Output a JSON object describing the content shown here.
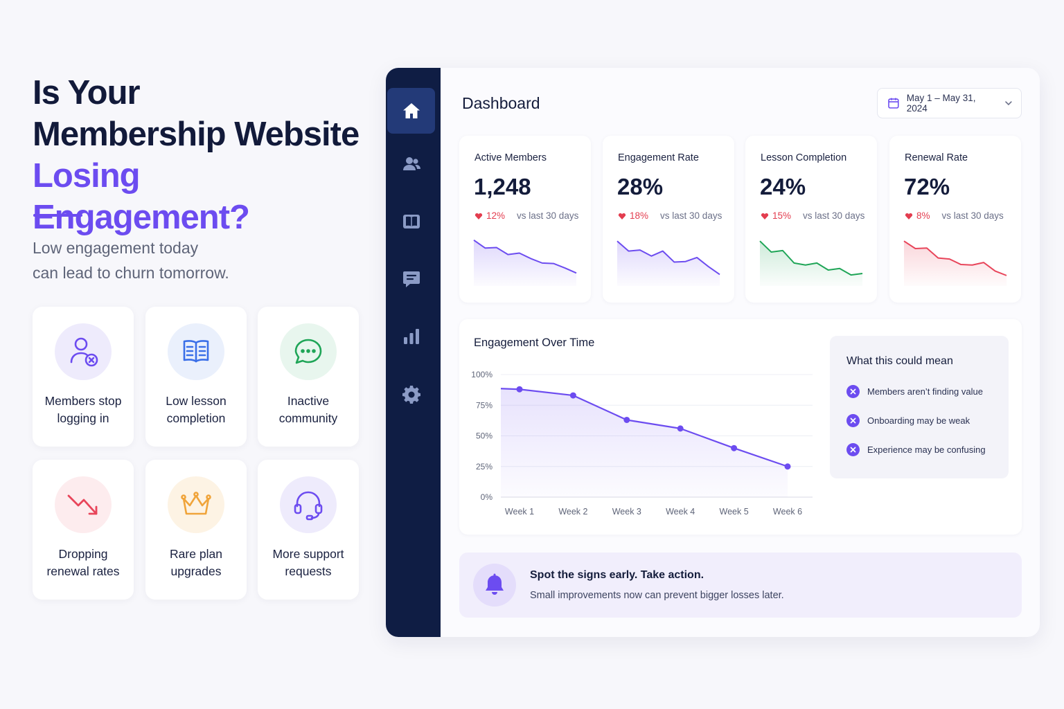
{
  "headline": {
    "line1": "Is Your",
    "line2": "Membership Website",
    "line3": "Losing Engagement?"
  },
  "subtext": {
    "line1": "Low engagement today",
    "line2": "can lead to churn tomorrow."
  },
  "sign_cards": [
    {
      "icon": "user-x-icon",
      "line1": "Members stop",
      "line2": "logging in",
      "color": "#6c4cf0",
      "bg": "#eeebfc"
    },
    {
      "icon": "open-book-icon",
      "line1": "Low lesson",
      "line2": "completion",
      "color": "#3a6fe8",
      "bg": "#eaf0fc"
    },
    {
      "icon": "chat-bubble-icon",
      "line1": "Inactive",
      "line2": "community",
      "color": "#1fa557",
      "bg": "#e8f6ee"
    },
    {
      "icon": "trend-down-icon",
      "line1": "Dropping",
      "line2": "renewal rates",
      "color": "#e8455a",
      "bg": "#fdecee"
    },
    {
      "icon": "crown-icon",
      "line1": "Rare plan",
      "line2": "upgrades",
      "color": "#f0a43a",
      "bg": "#fdf3e4"
    },
    {
      "icon": "headset-icon",
      "line1": "More support",
      "line2": "requests",
      "color": "#6c4cf0",
      "bg": "#eeebfc"
    }
  ],
  "sidebar": {
    "items": [
      {
        "icon": "home-icon",
        "active": true
      },
      {
        "icon": "users-icon",
        "active": false
      },
      {
        "icon": "courses-icon",
        "active": false
      },
      {
        "icon": "messages-icon",
        "active": false
      },
      {
        "icon": "analytics-icon",
        "active": false
      },
      {
        "icon": "settings-icon",
        "active": false
      }
    ]
  },
  "dashboard": {
    "title": "Dashboard",
    "date_range": "May 1 – May 31, 2024"
  },
  "kpis": [
    {
      "title": "Active Members",
      "value": "1,248",
      "delta": "12%",
      "compare": "vs last 30 days",
      "color": "#6c4cf0",
      "trend": [
        9.2,
        7.6,
        7.7,
        6.3,
        6.6,
        5.5,
        4.6,
        4.5,
        3.6,
        2.6
      ]
    },
    {
      "title": "Engagement Rate",
      "value": "28%",
      "delta": "18%",
      "compare": "vs last 30 days",
      "color": "#6c4cf0",
      "trend": [
        9.0,
        7.0,
        7.2,
        6.0,
        7.0,
        4.8,
        4.9,
        5.7,
        3.9,
        2.3
      ]
    },
    {
      "title": "Lesson Completion",
      "value": "24%",
      "delta": "15%",
      "compare": "vs last 30 days",
      "color": "#1fa557",
      "trend": [
        9.0,
        6.8,
        7.1,
        4.6,
        4.2,
        4.6,
        3.2,
        3.5,
        2.2,
        2.5
      ]
    },
    {
      "title": "Renewal Rate",
      "value": "72%",
      "delta": "8%",
      "compare": "vs last 30 days",
      "color": "#e8455a",
      "trend": [
        9.0,
        7.5,
        7.6,
        5.6,
        5.4,
        4.3,
        4.2,
        4.7,
        3.0,
        2.1
      ]
    }
  ],
  "chart_data": {
    "type": "line",
    "title": "Engagement Over Time",
    "categories": [
      "Week 1",
      "Week 2",
      "Week 3",
      "Week 4",
      "Week 5",
      "Week 6"
    ],
    "series": [
      {
        "values": [
          88,
          83,
          63,
          56,
          40,
          25
        ]
      }
    ],
    "y_ticks": [
      "100%",
      "75%",
      "50%",
      "25%",
      "0%"
    ],
    "ylim": [
      0,
      100
    ],
    "grid": true,
    "color": "#6c4cf0"
  },
  "meaning": {
    "title": "What this could mean",
    "items": [
      "Members aren’t finding value",
      "Onboarding may be weak",
      "Experience may be confusing"
    ]
  },
  "cta": {
    "title": "Spot the signs early. Take action.",
    "subtitle": "Small improvements now can prevent bigger losses later."
  }
}
